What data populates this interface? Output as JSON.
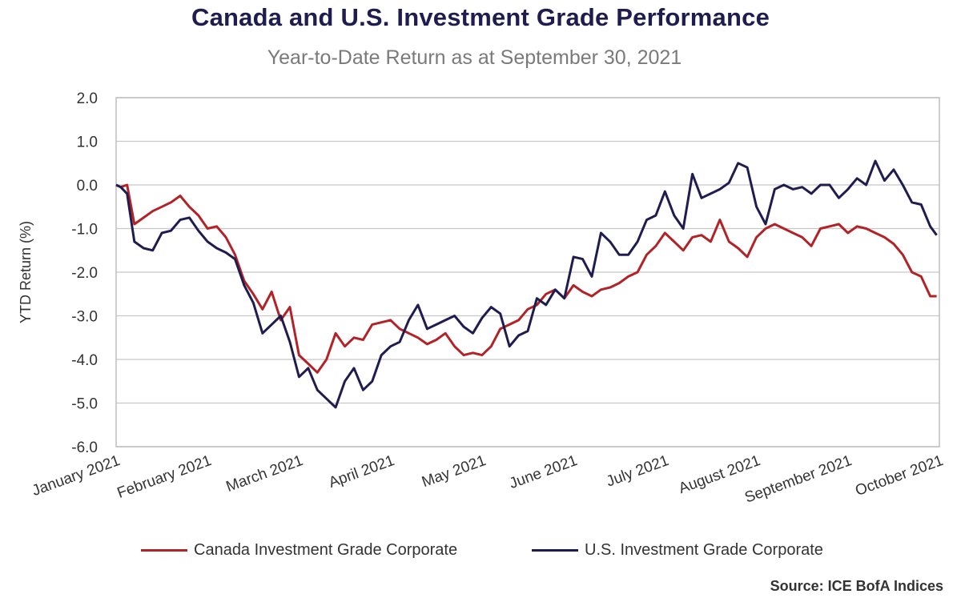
{
  "header": {
    "title": "Canada and U.S. Investment Grade Performance",
    "subtitle": "Year-to-Date Return as at September 30, 2021"
  },
  "source": "Source: ICE BofA Indices",
  "colors": {
    "canada": "#b22226",
    "us": "#1f1d4f",
    "grid": "#c8c8c8"
  },
  "chart_data": {
    "type": "line",
    "title": "Canada and U.S. Investment Grade Performance",
    "subtitle": "Year-to-Date Return as at September 30, 2021",
    "xlabel": "",
    "ylabel": "YTD Return (%)",
    "ylim": [
      -6.0,
      2.0
    ],
    "y_ticks": [
      "2.0",
      "1.0",
      "0.0",
      "-1.0",
      "-2.0",
      "-3.0",
      "-4.0",
      "-5.0",
      "-6.0"
    ],
    "x_ticks": [
      "January 2021",
      "February 2021",
      "March 2021",
      "April 2021",
      "May 2021",
      "June 2021",
      "July 2021",
      "August 2021",
      "September 2021",
      "October 2021"
    ],
    "grid": true,
    "legend_position": "bottom",
    "series": [
      {
        "name": "Canada Investment Grade Corporate",
        "color": "#b22226",
        "x": [
          0,
          0.05,
          0.12,
          0.2,
          0.3,
          0.4,
          0.5,
          0.6,
          0.7,
          0.8,
          0.9,
          1.0,
          1.1,
          1.2,
          1.3,
          1.4,
          1.5,
          1.6,
          1.7,
          1.8,
          1.9,
          2.0,
          2.1,
          2.2,
          2.3,
          2.4,
          2.5,
          2.6,
          2.7,
          2.8,
          2.9,
          3.0,
          3.1,
          3.2,
          3.3,
          3.4,
          3.5,
          3.6,
          3.7,
          3.8,
          3.9,
          4.0,
          4.1,
          4.2,
          4.3,
          4.4,
          4.5,
          4.6,
          4.7,
          4.8,
          4.9,
          5.0,
          5.1,
          5.2,
          5.3,
          5.4,
          5.5,
          5.6,
          5.7,
          5.8,
          5.9,
          6.0,
          6.1,
          6.2,
          6.3,
          6.4,
          6.5,
          6.6,
          6.7,
          6.8,
          6.9,
          7.0,
          7.1,
          7.2,
          7.3,
          7.4,
          7.5,
          7.6,
          7.7,
          7.8,
          7.9,
          8.0,
          8.1,
          8.2,
          8.3,
          8.4,
          8.5,
          8.6,
          8.7,
          8.8,
          8.9,
          8.97
        ],
        "values": [
          0,
          -0.05,
          0.0,
          -0.9,
          -0.75,
          -0.6,
          -0.5,
          -0.4,
          -0.25,
          -0.5,
          -0.7,
          -1.0,
          -0.95,
          -1.2,
          -1.6,
          -2.2,
          -2.5,
          -2.85,
          -2.45,
          -3.1,
          -2.8,
          -3.9,
          -4.1,
          -4.3,
          -4.0,
          -3.4,
          -3.7,
          -3.5,
          -3.55,
          -3.2,
          -3.15,
          -3.1,
          -3.3,
          -3.4,
          -3.5,
          -3.65,
          -3.55,
          -3.4,
          -3.7,
          -3.9,
          -3.85,
          -3.9,
          -3.7,
          -3.3,
          -3.2,
          -3.1,
          -2.85,
          -2.75,
          -2.5,
          -2.4,
          -2.6,
          -2.3,
          -2.45,
          -2.55,
          -2.4,
          -2.35,
          -2.25,
          -2.1,
          -2.0,
          -1.6,
          -1.4,
          -1.1,
          -1.3,
          -1.5,
          -1.2,
          -1.15,
          -1.3,
          -0.8,
          -1.3,
          -1.45,
          -1.65,
          -1.2,
          -1.0,
          -0.9,
          -1.0,
          -1.1,
          -1.2,
          -1.4,
          -1.0,
          -0.95,
          -0.9,
          -1.1,
          -0.95,
          -1.0,
          -1.1,
          -1.2,
          -1.35,
          -1.6,
          -2.0,
          -2.1,
          -2.55,
          -2.55
        ]
      },
      {
        "name": "U.S. Investment Grade Corporate",
        "color": "#1f1d4f",
        "x": [
          0,
          0.05,
          0.12,
          0.2,
          0.3,
          0.4,
          0.5,
          0.6,
          0.7,
          0.8,
          0.9,
          1.0,
          1.1,
          1.2,
          1.3,
          1.4,
          1.5,
          1.6,
          1.7,
          1.8,
          1.9,
          2.0,
          2.1,
          2.2,
          2.3,
          2.4,
          2.5,
          2.6,
          2.7,
          2.8,
          2.9,
          3.0,
          3.1,
          3.2,
          3.3,
          3.4,
          3.5,
          3.6,
          3.7,
          3.8,
          3.9,
          4.0,
          4.1,
          4.2,
          4.3,
          4.4,
          4.5,
          4.6,
          4.7,
          4.8,
          4.9,
          5.0,
          5.1,
          5.2,
          5.3,
          5.4,
          5.5,
          5.6,
          5.7,
          5.8,
          5.9,
          6.0,
          6.1,
          6.2,
          6.3,
          6.4,
          6.5,
          6.6,
          6.7,
          6.8,
          6.9,
          7.0,
          7.1,
          7.2,
          7.3,
          7.4,
          7.5,
          7.6,
          7.7,
          7.8,
          7.9,
          8.0,
          8.1,
          8.2,
          8.3,
          8.4,
          8.5,
          8.6,
          8.7,
          8.8,
          8.9,
          8.97
        ],
        "values": [
          0,
          -0.05,
          -0.2,
          -1.3,
          -1.45,
          -1.5,
          -1.1,
          -1.05,
          -0.8,
          -0.75,
          -1.05,
          -1.3,
          -1.45,
          -1.55,
          -1.7,
          -2.3,
          -2.7,
          -3.4,
          -3.2,
          -3.0,
          -3.6,
          -4.4,
          -4.2,
          -4.7,
          -4.9,
          -5.1,
          -4.5,
          -4.2,
          -4.7,
          -4.5,
          -3.9,
          -3.7,
          -3.6,
          -3.1,
          -2.75,
          -3.3,
          -3.2,
          -3.1,
          -3.0,
          -3.25,
          -3.4,
          -3.05,
          -2.8,
          -2.95,
          -3.7,
          -3.45,
          -3.35,
          -2.6,
          -2.75,
          -2.4,
          -2.6,
          -1.65,
          -1.7,
          -2.1,
          -1.1,
          -1.3,
          -1.6,
          -1.6,
          -1.3,
          -0.8,
          -0.7,
          -0.15,
          -0.7,
          -1.0,
          0.25,
          -0.3,
          -0.2,
          -0.1,
          0.05,
          0.5,
          0.4,
          -0.5,
          -0.9,
          -0.1,
          0.0,
          -0.1,
          -0.05,
          -0.2,
          0.0,
          0.0,
          -0.3,
          -0.1,
          0.15,
          0.0,
          0.55,
          0.1,
          0.35,
          0.0,
          -0.4,
          -0.45,
          -0.95,
          -1.15
        ]
      }
    ]
  }
}
